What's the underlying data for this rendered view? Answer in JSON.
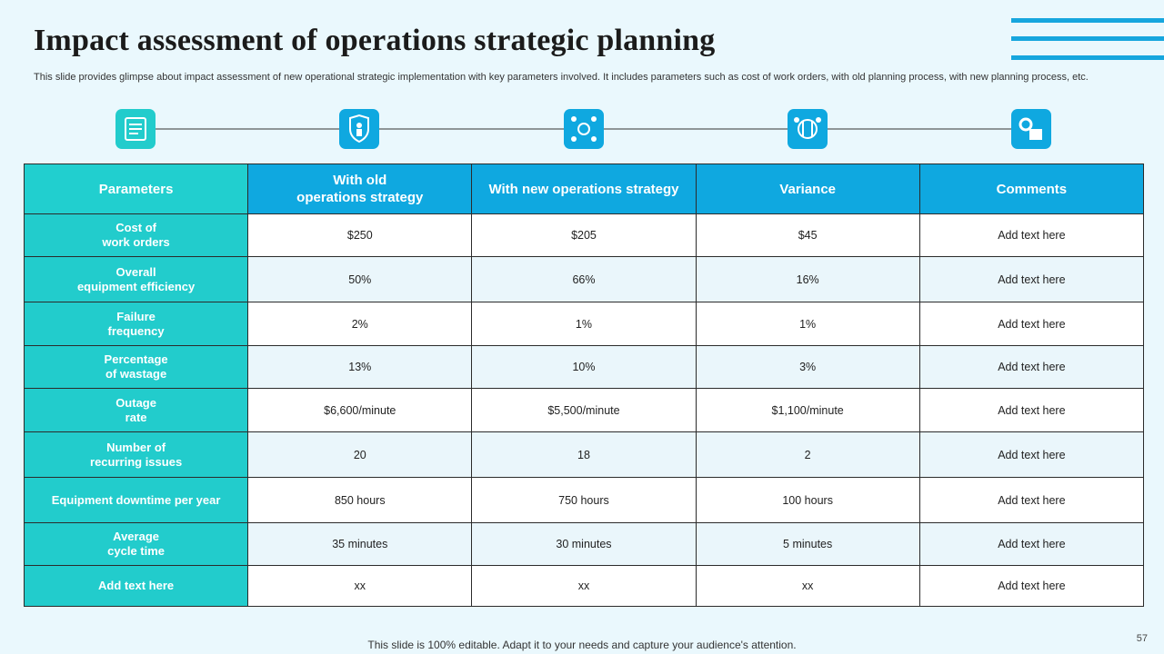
{
  "header": {
    "title": "Impact assessment of operations strategic planning",
    "subtitle": "This slide provides glimpse about impact assessment of new operational strategic implementation with key parameters involved. It includes parameters such as cost of work orders, with old planning process, with new planning process, etc."
  },
  "table": {
    "columns": [
      "Parameters",
      "With old\noperations strategy",
      "With new operations strategy",
      "Variance",
      "Comments"
    ],
    "rows": [
      [
        "Cost of\nwork orders",
        "$250",
        "$205",
        "$45",
        "Add text here"
      ],
      [
        "Overall\nequipment efficiency",
        "50%",
        "66%",
        "16%",
        "Add text here"
      ],
      [
        "Failure\nfrequency",
        "2%",
        "1%",
        "1%",
        "Add text here"
      ],
      [
        "Percentage\nof wastage",
        "13%",
        "10%",
        "3%",
        "Add text here"
      ],
      [
        "Outage\nrate",
        "$6,600/minute",
        "$5,500/minute",
        "$1,100/minute",
        "Add text here"
      ],
      [
        "Number of\nrecurring issues",
        "20",
        "18",
        "2",
        "Add text here"
      ],
      [
        "Equipment downtime per year",
        "850 hours",
        "750 hours",
        "100 hours",
        "Add text here"
      ],
      [
        "Average\ncycle time",
        "35 minutes",
        "30 minutes",
        "5 minutes",
        "Add text here"
      ],
      [
        "Add text here",
        "xx",
        "xx",
        "xx",
        "Add text here"
      ]
    ]
  },
  "footer": {
    "note": "This slide is 100% editable. Adapt it to your needs and capture your audience's attention.",
    "page": "57"
  }
}
